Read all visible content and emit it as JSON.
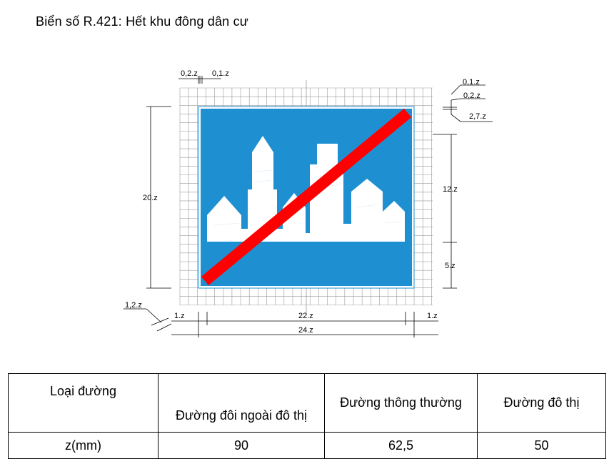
{
  "title": "Biển số R.421: Hết khu đông dân cư",
  "diagram": {
    "colors": {
      "blue": "#1e90d2",
      "red": "#ff0000",
      "grid": "#9a9a9a",
      "white": "#ffffff"
    },
    "dims": {
      "top_a": "0,2.z",
      "top_b": "0,1.z",
      "right_a": "0,1.z",
      "right_b": "0,2.z",
      "right_c": "2,7.z",
      "right_d": "12.z",
      "right_e": "5.z",
      "left_height": "20.z",
      "corner": "1,2.z",
      "bottom_left": "1.z",
      "bottom_mid": "22.z",
      "bottom_right": "1.z",
      "bottom_total": "24.z"
    }
  },
  "table": {
    "headers": [
      "Loại đường",
      "Đường đôi ngoài đô thị",
      "Đường thông thường",
      "Đường đô thị"
    ],
    "row": [
      "z(mm)",
      "90",
      "62,5",
      "50"
    ]
  }
}
